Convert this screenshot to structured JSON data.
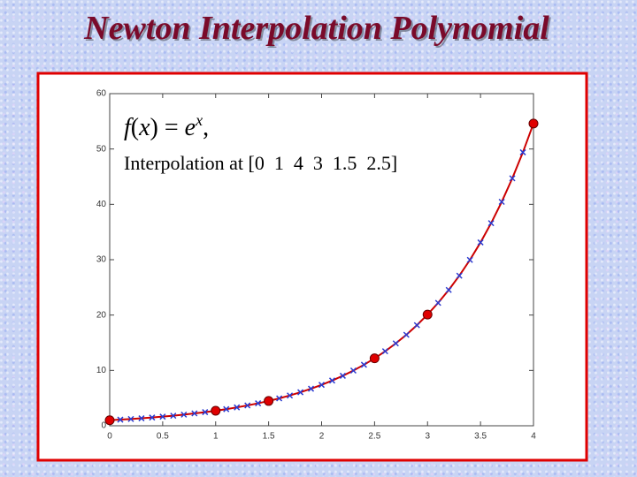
{
  "chart_data": {
    "type": "line",
    "title": "Newton Interpolation Polynomial",
    "formula": [
      "f",
      "(",
      "x",
      ") = ",
      "e",
      "x",
      ","
    ],
    "annotation": "Interpolation at [0  1  4  3  1.5  2.5]",
    "xlim": [
      0,
      4
    ],
    "ylim": [
      0,
      60
    ],
    "xticks": [
      0,
      0.5,
      1,
      1.5,
      2,
      2.5,
      3,
      3.5,
      4
    ],
    "yticks": [
      0,
      10,
      20,
      30,
      40,
      50,
      60
    ],
    "series": [
      {
        "color": "#cc0000",
        "marker": "x",
        "marker_color": "#2a3bd0",
        "x": [
          0,
          0.1,
          0.2,
          0.3,
          0.4,
          0.5,
          0.6,
          0.7,
          0.8,
          0.9,
          1,
          1.1,
          1.2,
          1.3,
          1.4,
          1.5,
          1.6,
          1.7,
          1.8,
          1.9,
          2,
          2.1,
          2.2,
          2.3,
          2.4,
          2.5,
          2.6,
          2.7,
          2.8,
          2.9,
          3,
          3.1,
          3.2,
          3.3,
          3.4,
          3.5,
          3.6,
          3.7,
          3.8,
          3.9,
          4
        ],
        "values": [
          1.0,
          1.11,
          1.22,
          1.35,
          1.49,
          1.65,
          1.82,
          2.01,
          2.23,
          2.46,
          2.72,
          3.0,
          3.32,
          3.67,
          4.06,
          4.48,
          4.95,
          5.47,
          6.05,
          6.69,
          7.39,
          8.17,
          9.03,
          9.97,
          11.02,
          12.18,
          13.46,
          14.88,
          16.44,
          18.17,
          20.09,
          22.2,
          24.53,
          27.11,
          29.96,
          33.12,
          36.6,
          40.45,
          44.7,
          49.4,
          54.6
        ]
      },
      {
        "color": "#e00000",
        "marker": "circle",
        "x": [
          0,
          1,
          1.5,
          2.5,
          3,
          4
        ],
        "values": [
          1.0,
          2.72,
          4.48,
          12.18,
          20.09,
          54.6
        ]
      }
    ]
  }
}
